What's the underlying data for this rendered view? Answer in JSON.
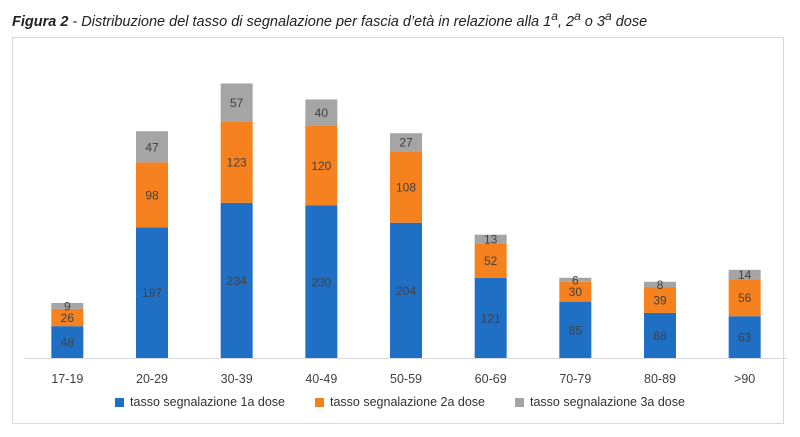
{
  "caption": {
    "label": "Figura 2",
    "text": " - Distribuzione del tasso di segnalazione per fascia d’età in relazione alla 1",
    "sup1": "a",
    "mid1": ", 2",
    "sup2": "a",
    "mid2": " o 3",
    "sup3": "a",
    "end": " dose"
  },
  "chart_data": {
    "type": "bar",
    "stacked": true,
    "categories": [
      "17-19",
      "20-29",
      "30-39",
      "40-49",
      "50-59",
      "60-69",
      "70-79",
      "80-89",
      ">90"
    ],
    "series": [
      {
        "name": "tasso segnalazione 1a dose",
        "color": "#1f6fc4",
        "values": [
          48,
          197,
          234,
          230,
          204,
          121,
          85,
          68,
          63
        ]
      },
      {
        "name": "tasso segnalazione 2a dose",
        "color": "#f5821f",
        "values": [
          26,
          98,
          123,
          120,
          108,
          52,
          30,
          39,
          56
        ]
      },
      {
        "name": "tasso segnalazione 3a dose",
        "color": "#a5a5a5",
        "values": [
          9,
          47,
          57,
          40,
          27,
          13,
          6,
          8,
          14
        ]
      }
    ],
    "ylim": [
      0,
      420
    ],
    "grid": false,
    "legend_position": "bottom"
  }
}
